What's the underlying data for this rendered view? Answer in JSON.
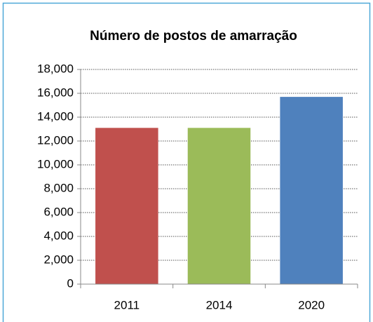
{
  "chart_data": {
    "type": "bar",
    "title": "Número de postos de amarração",
    "categories": [
      "2011",
      "2014",
      "2020"
    ],
    "values": [
      13100,
      13100,
      15700
    ],
    "colors": [
      "#c0504d",
      "#9bbb59",
      "#4f81bd"
    ],
    "ylim": [
      0,
      18000
    ],
    "yticks": [
      0,
      {
        "value": 2000,
        "label": "2,000"
      },
      {
        "value": 4000,
        "label": "4,000"
      },
      {
        "value": 6000,
        "label": "6,000"
      },
      {
        "value": 8000,
        "label": "8,000"
      },
      {
        "value": 10000,
        "label": "10,000"
      },
      {
        "value": 12000,
        "label": "12,000"
      },
      {
        "value": 14000,
        "label": "14,000"
      },
      {
        "value": 16000,
        "label": "16,000"
      },
      {
        "value": 18000,
        "label": "18,000"
      }
    ],
    "grid": true
  }
}
